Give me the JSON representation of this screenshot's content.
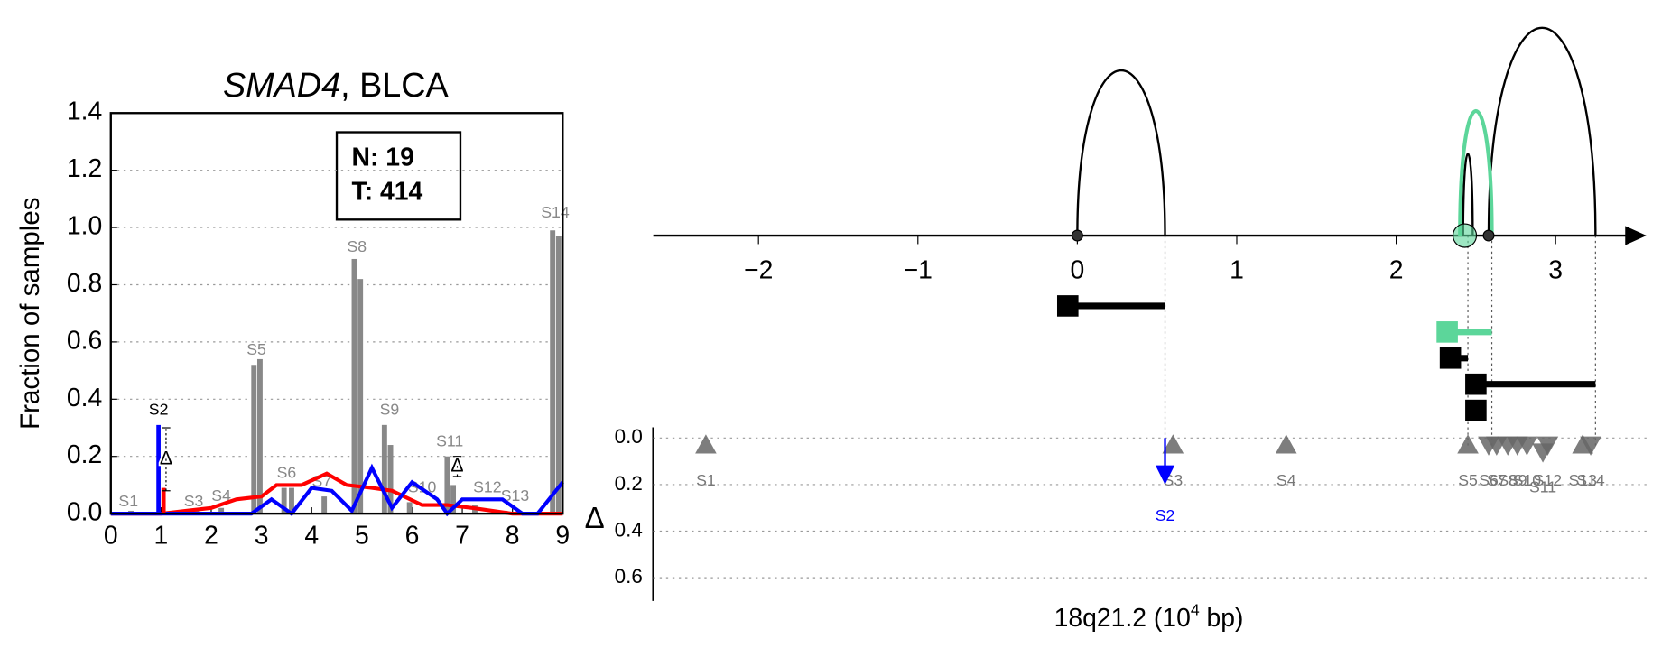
{
  "chart_data": [
    {
      "type": "bar",
      "title_gene": "SMAD4",
      "title_rest": ", BLCA",
      "ylabel": "Fraction of samples",
      "legend": [
        "N: 19",
        "T: 414"
      ],
      "xlim": [
        0,
        9
      ],
      "ylim": [
        0,
        1.4
      ],
      "xticks": [
        0,
        1,
        2,
        3,
        4,
        5,
        6,
        7,
        8,
        9
      ],
      "yticks": [
        {
          "value": 0,
          "label": "0.0"
        },
        {
          "value": 0.2,
          "label": "0.2"
        },
        {
          "value": 0.4,
          "label": "0.4"
        },
        {
          "value": 0.6,
          "label": "0.6"
        },
        {
          "value": 0.8,
          "label": "0.8"
        },
        {
          "value": 1.0,
          "label": "1.0"
        },
        {
          "value": 1.2,
          "label": "1.2"
        },
        {
          "value": 1.4,
          "label": "1.4"
        }
      ],
      "grid": true,
      "bars": {
        "color": "#888888",
        "x": [
          0.4,
          1.7,
          2.2,
          2.85,
          2.97,
          3.45,
          3.6,
          4.25,
          4.85,
          4.97,
          5.45,
          5.57,
          5.95,
          6.7,
          6.82,
          7.25,
          7.85,
          8.8,
          8.92
        ],
        "values": [
          0.01,
          0.01,
          0.02,
          0.52,
          0.54,
          0.09,
          0.09,
          0.06,
          0.89,
          0.82,
          0.31,
          0.24,
          0.04,
          0.2,
          0.1,
          0.03,
          0.01,
          0.99,
          0.97
        ]
      },
      "series": [
        {
          "color": "#ff0000",
          "x": [
            0,
            1,
            1.5,
            2,
            2.5,
            3,
            3.3,
            3.8,
            4.3,
            4.7,
            5.2,
            5.6,
            6.2,
            6.7,
            7.2,
            8,
            9
          ],
          "values": [
            0,
            0,
            0.01,
            0.02,
            0.05,
            0.06,
            0.1,
            0.1,
            0.14,
            0.1,
            0.09,
            0.08,
            0.03,
            0.03,
            0.02,
            0,
            0
          ]
        },
        {
          "color": "#0000ff",
          "x": [
            0,
            2.8,
            3.2,
            3.6,
            4,
            4.4,
            4.8,
            5.2,
            5.6,
            6,
            6.5,
            6.7,
            7,
            7.8,
            8.2,
            8.5,
            9
          ],
          "values": [
            0,
            0,
            0.05,
            0,
            0.09,
            0.08,
            0.01,
            0.16,
            0.02,
            0.11,
            0.05,
            0,
            0.05,
            0.05,
            0,
            0,
            0.11
          ]
        }
      ],
      "spikes": [
        {
          "x": 0.95,
          "value": 0.31,
          "color": "#0000ff"
        },
        {
          "x": 1.05,
          "value": 0.09,
          "color": "#ff0000"
        }
      ],
      "error_bars": [
        {
          "x": 1.1,
          "low": 0.08,
          "high": 0.3,
          "label": "Δ"
        },
        {
          "x": 6.9,
          "low": 0.13,
          "high": 0.2,
          "label": "Δ"
        }
      ],
      "sample_labels": [
        {
          "text": "S1",
          "x": 0.35,
          "y": 0.04
        },
        {
          "text": "S2",
          "x": 0.95,
          "y": 0.36
        },
        {
          "text": "S3",
          "x": 1.65,
          "y": 0.04
        },
        {
          "text": "S4",
          "x": 2.2,
          "y": 0.06
        },
        {
          "text": "S5",
          "x": 2.9,
          "y": 0.57
        },
        {
          "text": "S6",
          "x": 3.5,
          "y": 0.14
        },
        {
          "text": "S7",
          "x": 4.2,
          "y": 0.11
        },
        {
          "text": "S8",
          "x": 4.9,
          "y": 0.93
        },
        {
          "text": "S9",
          "x": 5.55,
          "y": 0.36
        },
        {
          "text": "S10",
          "x": 6.2,
          "y": 0.09
        },
        {
          "text": "S11",
          "x": 6.75,
          "y": 0.25
        },
        {
          "text": "S12",
          "x": 7.5,
          "y": 0.09
        },
        {
          "text": "S13",
          "x": 8.05,
          "y": 0.06
        },
        {
          "text": "S14",
          "x": 8.85,
          "y": 1.05
        }
      ]
    },
    {
      "type": "arc",
      "xlim": [
        -2.66,
        3.57
      ],
      "xticks": [
        {
          "value": -2,
          "label": "−2"
        },
        {
          "value": -1,
          "label": "−1"
        },
        0,
        1,
        2,
        3
      ],
      "hlim": [
        0,
        2
      ],
      "arcs": [
        {
          "start": 0,
          "end": 0.55,
          "height": 1.55,
          "color": "#000000"
        },
        {
          "start": 2.58,
          "end": 3.25,
          "height": 1.95,
          "color": "#000000"
        },
        {
          "start": 2.42,
          "end": 2.48,
          "height": 0.77,
          "color": "#000000"
        },
        {
          "start": 2.4,
          "end": 2.6,
          "height": 1.17,
          "color": "#5cd69a"
        }
      ],
      "points": [
        {
          "x": 0,
          "color": "#333333"
        },
        {
          "x": 2.58,
          "color": "#333333"
        },
        {
          "x": 2.43,
          "color": "#5cd69a"
        }
      ],
      "guides": [
        0.55,
        2.45,
        2.6,
        3.25
      ],
      "intervals": [
        {
          "start": -0.06,
          "end": 0.55,
          "color": "#000000"
        },
        {
          "start": 2.32,
          "end": 2.6,
          "color": "#5cd69a"
        },
        {
          "start": 2.34,
          "end": 2.45,
          "color": "#000000"
        },
        {
          "start": 2.5,
          "end": 3.25,
          "color": "#000000"
        },
        {
          "start": 2.5,
          "end": 2.5,
          "color": "#000000"
        }
      ]
    },
    {
      "type": "scatter",
      "xlabel": "18q21.2 (10",
      "xlabel_sup": "4",
      "xlabel_end": " bp)",
      "ylabel": "Δ",
      "ylim": [
        0,
        0.7
      ],
      "yticks": [
        {
          "value": 0,
          "label": "0.0"
        },
        {
          "value": 0.2,
          "label": "0.2"
        },
        {
          "value": 0.4,
          "label": "0.4"
        },
        {
          "value": 0.6,
          "label": "0.6"
        }
      ],
      "grid": true,
      "points": [
        {
          "name": "S1",
          "x": -2.33,
          "y": 0.03,
          "marker": "up"
        },
        {
          "name": "S3",
          "x": 0.6,
          "y": 0.03,
          "marker": "up"
        },
        {
          "name": "S4",
          "x": 1.31,
          "y": 0.03,
          "marker": "up"
        },
        {
          "name": "S5",
          "x": 2.45,
          "y": 0.03,
          "marker": "up"
        },
        {
          "name": "S6",
          "x": 2.58,
          "y": 0.03,
          "marker": "down"
        },
        {
          "name": "S7",
          "x": 2.63,
          "y": 0.03,
          "marker": "down"
        },
        {
          "name": "S8",
          "x": 2.7,
          "y": 0.03,
          "marker": "down"
        },
        {
          "name": "S9",
          "x": 2.76,
          "y": 0.03,
          "marker": "down"
        },
        {
          "name": "S10",
          "x": 2.82,
          "y": 0.03,
          "marker": "down"
        },
        {
          "name": "S11",
          "x": 2.92,
          "y": 0.06,
          "marker": "down"
        },
        {
          "name": "S12",
          "x": 2.95,
          "y": 0.03,
          "marker": "down"
        },
        {
          "name": "S13",
          "x": 3.17,
          "y": 0.03,
          "marker": "up"
        },
        {
          "name": "S14",
          "x": 3.22,
          "y": 0.03,
          "marker": "down"
        }
      ],
      "arrow": {
        "name": "S2",
        "x": 0.55,
        "y": 0.2,
        "color": "#0000ff"
      }
    }
  ]
}
